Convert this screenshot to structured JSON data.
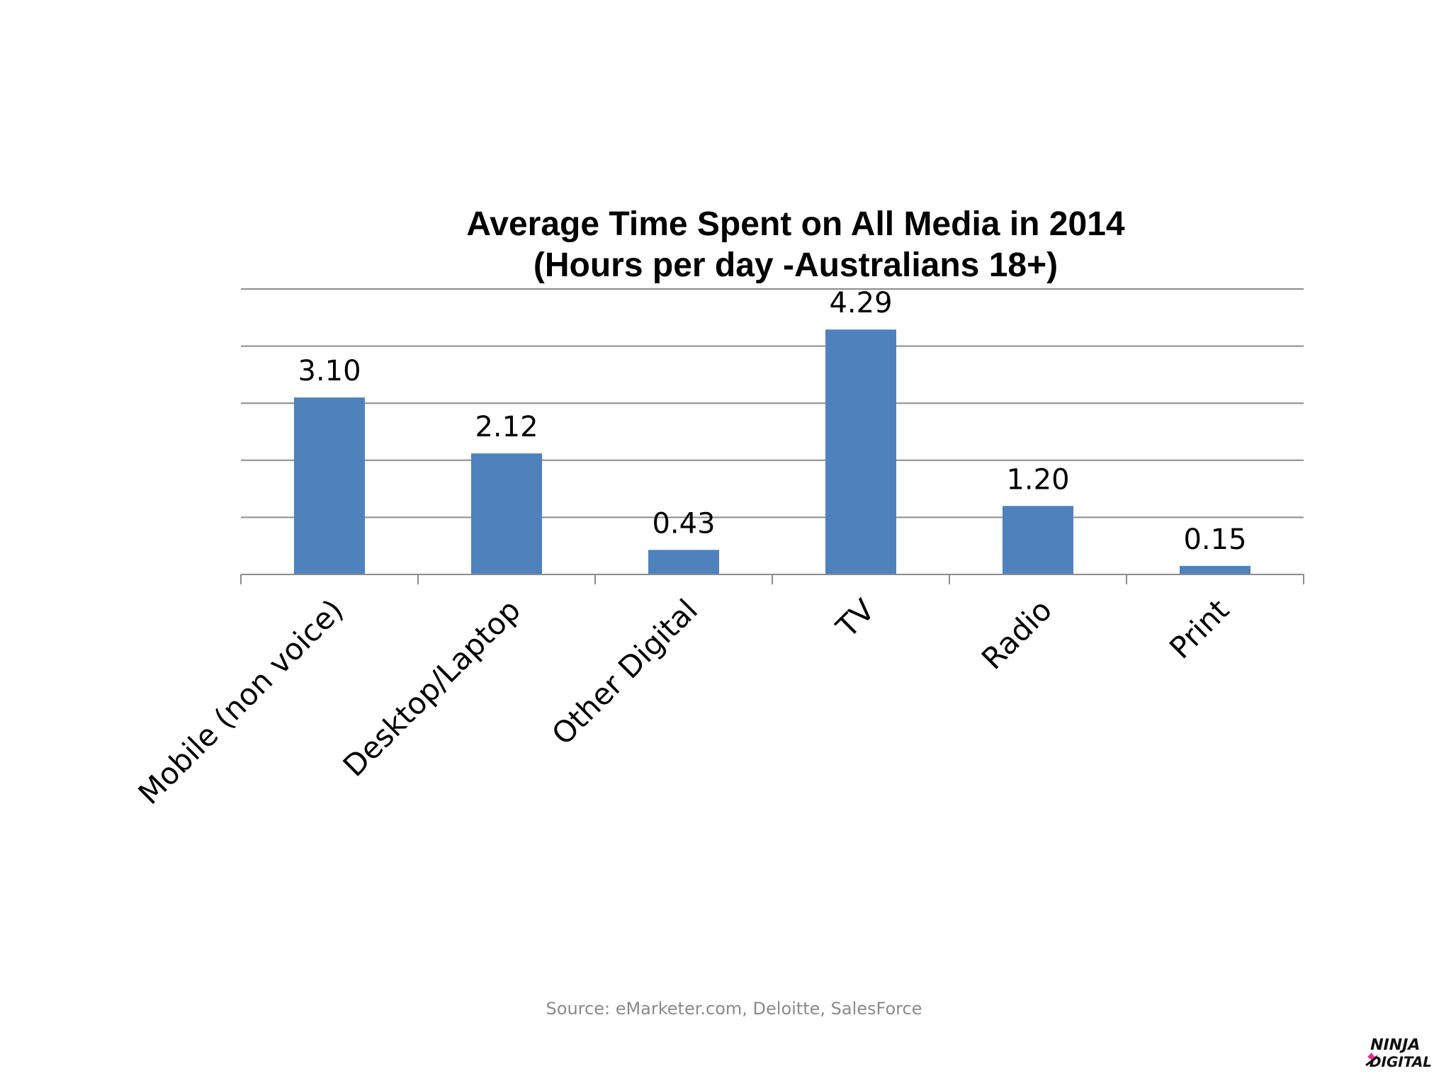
{
  "chart_data": {
    "type": "bar",
    "title": "Average Time Spent on All Media in 2014",
    "subtitle": "(Hours per day -Australians 18+)",
    "categories": [
      "Mobile (non voice)",
      "Desktop/Laptop",
      "Other Digital",
      "TV",
      "Radio",
      "Print"
    ],
    "values": [
      3.1,
      2.12,
      0.43,
      4.29,
      1.2,
      0.15
    ],
    "value_labels": [
      "3.10",
      "2.12",
      "0.43",
      "4.29",
      "1.20",
      "0.15"
    ],
    "ylim": [
      0,
      5
    ],
    "grid": true,
    "bar_color": "#4f81bd",
    "legend": "none"
  },
  "source": "Source: eMarketer.com, Deloitte, SalesForce",
  "logo": {
    "name": "ninja-digital-logo",
    "text": "NINJA DIGITAL"
  }
}
